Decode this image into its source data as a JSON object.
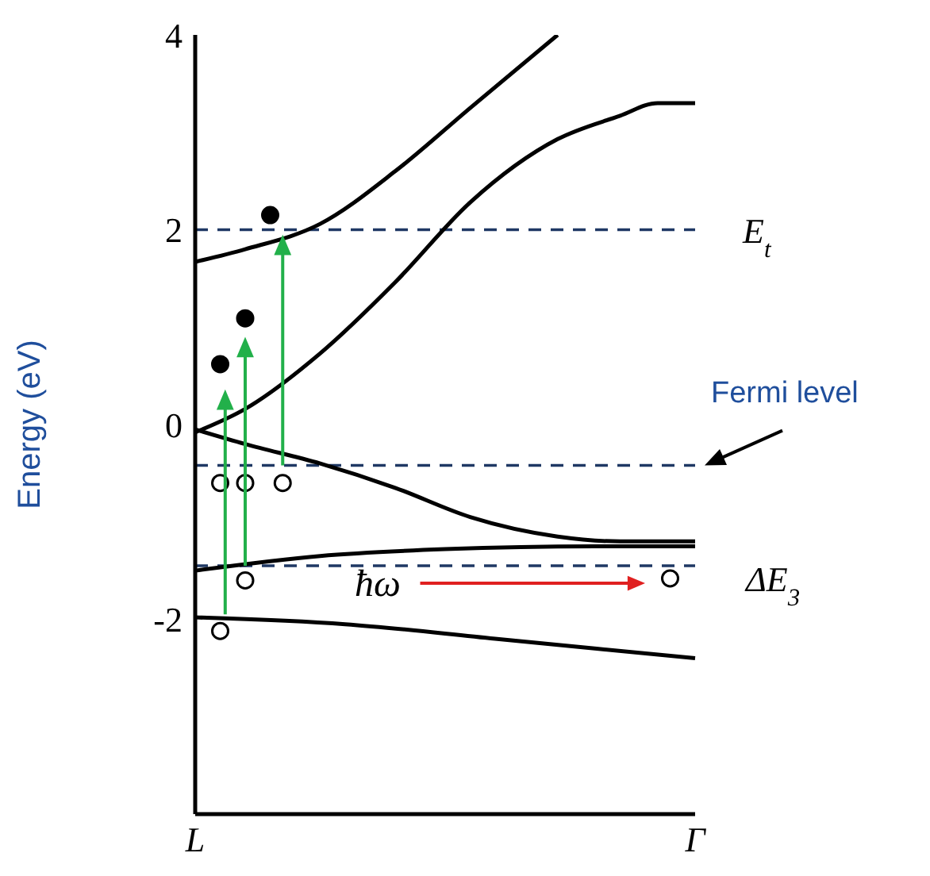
{
  "chart_data": {
    "type": "line",
    "ylabel": "Energy (eV)",
    "categories": [
      "L",
      null,
      null,
      null,
      null,
      null,
      null,
      null,
      null,
      null,
      null,
      null,
      null,
      null,
      null,
      null,
      null,
      null,
      null,
      null,
      null,
      null,
      null,
      null,
      null,
      null,
      null,
      null,
      null,
      null,
      null,
      null,
      null,
      null,
      null,
      null,
      null,
      null,
      null,
      null,
      "Γ"
    ],
    "ylim": [
      -4,
      4
    ],
    "yticks": [
      4,
      2,
      0,
      -2
    ],
    "marker": "none",
    "line_style": "solid",
    "series": [
      {
        "color": "#000000",
        "values": [
          1.67,
          null,
          null,
          null,
          1.8,
          null,
          null,
          null,
          null,
          null,
          2.06,
          null,
          null,
          null,
          null,
          null,
          2.6,
          null,
          null,
          null,
          null,
          null,
          3.25,
          null,
          null,
          null,
          null,
          null,
          null,
          4,
          null,
          null,
          null,
          null,
          null,
          null,
          null,
          null,
          null,
          null,
          null
        ]
      },
      {
        "color": "#000000",
        "values": [
          -0.08,
          null,
          null,
          null,
          0.16,
          null,
          null,
          null,
          null,
          null,
          0.73,
          null,
          null,
          null,
          null,
          null,
          1.46,
          null,
          null,
          null,
          null,
          null,
          2.28,
          null,
          null,
          null,
          null,
          null,
          null,
          2.93,
          null,
          null,
          null,
          null,
          3.17,
          null,
          null,
          3.3,
          null,
          null,
          3.3
        ]
      },
      {
        "color": "#000000",
        "values": [
          -0.05,
          null,
          null,
          null,
          -0.2,
          null,
          null,
          null,
          null,
          null,
          -0.4,
          null,
          null,
          null,
          null,
          null,
          -0.65,
          null,
          null,
          null,
          null,
          null,
          -0.95,
          null,
          null,
          null,
          null,
          null,
          null,
          -1.15,
          null,
          null,
          null,
          null,
          -1.2,
          null,
          null,
          null,
          null,
          null,
          -1.2
        ]
      },
      {
        "color": "#000000",
        "values": [
          -1.5,
          null,
          null,
          null,
          null,
          null,
          null,
          null,
          null,
          null,
          -1.35,
          null,
          null,
          null,
          null,
          null,
          null,
          null,
          null,
          null,
          -1.28,
          null,
          null,
          null,
          null,
          null,
          null,
          null,
          null,
          null,
          null,
          null,
          -1.25,
          null,
          null,
          null,
          null,
          null,
          null,
          null,
          -1.25
        ]
      },
      {
        "color": "#000000",
        "values": [
          -1.98,
          null,
          null,
          null,
          null,
          null,
          null,
          null,
          null,
          null,
          null,
          null,
          -2.05,
          null,
          null,
          null,
          null,
          null,
          null,
          null,
          null,
          null,
          null,
          null,
          -2.2,
          null,
          null,
          null,
          null,
          null,
          null,
          null,
          null,
          null,
          null,
          null,
          null,
          null,
          null,
          null,
          -2.4
        ]
      },
      {
        "type": "scatter",
        "marker": "circle",
        "color": "#000000",
        "values": [
          null,
          null,
          0.62,
          null,
          1.09,
          null,
          2.15,
          null,
          null,
          null,
          null,
          null,
          null,
          null,
          null,
          null,
          null,
          null,
          null,
          null,
          null,
          null,
          null,
          null,
          null,
          null,
          null,
          null,
          null,
          null,
          null,
          null,
          null,
          null,
          null,
          null,
          null,
          null,
          null,
          null,
          null
        ]
      },
      {
        "type": "scatter",
        "marker": "circle",
        "color": "#ffffff",
        "values": [
          null,
          null,
          -0.6,
          null,
          -0.6,
          null,
          null,
          -0.6,
          null,
          null,
          null,
          null,
          null,
          null,
          null,
          null,
          null,
          null,
          null,
          null,
          null,
          null,
          null,
          null,
          null,
          null,
          null,
          null,
          null,
          null,
          null,
          null,
          null,
          null,
          null,
          null,
          null,
          null,
          -1.58,
          null,
          null
        ]
      },
      {
        "type": "scatter",
        "marker": "circle",
        "color": "#ffffff",
        "values": [
          null,
          null,
          -2.12,
          null,
          -1.6,
          null,
          null,
          null,
          null,
          null,
          null,
          null,
          null,
          null,
          null,
          null,
          null,
          null,
          null,
          null,
          null,
          null,
          null,
          null,
          null,
          null,
          null,
          null,
          null,
          null,
          null,
          null,
          null,
          null,
          null,
          null,
          null,
          null,
          null,
          null,
          null
        ]
      }
    ],
    "ref_lines": [
      {
        "axis": "y",
        "value": 2,
        "label": "E$_{t}$",
        "color": "#1f3864",
        "line_style": "dashed"
      },
      {
        "axis": "y",
        "value": -0.42,
        "label": "Fermi level",
        "color": "#1f3864",
        "line_style": "dashed"
      },
      {
        "axis": "y",
        "value": -1.45,
        "label": "ΔE$_{3}$",
        "color": "#1f3864",
        "line_style": "dashed"
      }
    ],
    "annotations": [
      "ħω"
    ]
  }
}
